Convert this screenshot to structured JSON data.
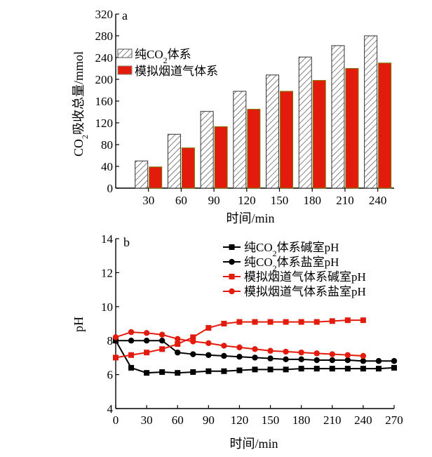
{
  "chart_data": [
    {
      "type": "bar",
      "panel_label": "a",
      "categories": [
        "30",
        "60",
        "90",
        "120",
        "150",
        "180",
        "210",
        "240"
      ],
      "xlabel": "时间/min",
      "ylabel_parts": [
        "CO",
        "2",
        "吸收总量/mmol"
      ],
      "ylim": [
        0,
        320
      ],
      "yticks": [
        "0",
        "40",
        "80",
        "120",
        "160",
        "200",
        "240",
        "280",
        "320"
      ],
      "legend_position": "top-left",
      "series": [
        {
          "name_parts": [
            "纯CO",
            "2",
            "体系"
          ],
          "values": [
            50,
            99,
            141,
            178,
            208,
            241,
            262,
            280
          ],
          "fill": "hatched",
          "color": "#ffffff"
        },
        {
          "name_parts": [
            "模拟烟道气体系",
            "",
            ""
          ],
          "values": [
            39,
            74,
            113,
            145,
            178,
            198,
            220,
            230
          ],
          "fill": "solid",
          "color": "#e31b0c"
        }
      ]
    },
    {
      "type": "line",
      "panel_label": "b",
      "xlabel": "时间/min",
      "ylabel": "pH",
      "xlim": [
        0,
        270
      ],
      "ylim": [
        4,
        14
      ],
      "xticks": [
        "0",
        "30",
        "60",
        "90",
        "120",
        "150",
        "180",
        "210",
        "240",
        "270"
      ],
      "yticks": [
        "4",
        "6",
        "8",
        "10",
        "12",
        "14"
      ],
      "legend_position": "top-right",
      "series": [
        {
          "name_parts": [
            "纯CO",
            "2",
            "体系碱室pH"
          ],
          "marker": "square",
          "color": "#000000",
          "x": [
            0,
            15,
            30,
            45,
            60,
            75,
            90,
            105,
            120,
            135,
            150,
            165,
            180,
            195,
            210,
            225,
            240,
            255,
            270
          ],
          "y": [
            8.0,
            6.4,
            6.1,
            6.15,
            6.1,
            6.15,
            6.2,
            6.2,
            6.25,
            6.3,
            6.3,
            6.3,
            6.35,
            6.35,
            6.35,
            6.35,
            6.35,
            6.35,
            6.4
          ]
        },
        {
          "name_parts": [
            "纯CO",
            "2",
            "体系盐室pH"
          ],
          "marker": "circle",
          "color": "#000000",
          "x": [
            0,
            15,
            30,
            45,
            60,
            75,
            90,
            105,
            120,
            135,
            150,
            165,
            180,
            195,
            210,
            225,
            240,
            255,
            270
          ],
          "y": [
            8.0,
            8.0,
            8.0,
            8.0,
            7.3,
            7.2,
            7.15,
            7.1,
            7.05,
            7.0,
            6.95,
            6.9,
            6.9,
            6.85,
            6.85,
            6.85,
            6.8,
            6.8,
            6.8
          ]
        },
        {
          "name_parts": [
            "模拟烟道气体系碱室pH",
            "",
            ""
          ],
          "marker": "square",
          "color": "#e31b0c",
          "x": [
            0,
            15,
            30,
            45,
            60,
            75,
            90,
            105,
            120,
            135,
            150,
            165,
            180,
            195,
            210,
            225,
            240
          ],
          "y": [
            7.0,
            7.15,
            7.3,
            7.5,
            7.8,
            8.2,
            8.75,
            9.0,
            9.1,
            9.1,
            9.1,
            9.1,
            9.1,
            9.1,
            9.15,
            9.2,
            9.2
          ]
        },
        {
          "name_parts": [
            "模拟烟道气体系盐室pH",
            "",
            ""
          ],
          "marker": "circle",
          "color": "#e31b0c",
          "x": [
            0,
            15,
            30,
            45,
            60,
            75,
            90,
            105,
            120,
            135,
            150,
            165,
            180,
            195,
            210,
            225,
            240
          ],
          "y": [
            8.2,
            8.5,
            8.45,
            8.35,
            8.1,
            7.95,
            7.85,
            7.7,
            7.6,
            7.5,
            7.4,
            7.35,
            7.3,
            7.25,
            7.2,
            7.15,
            7.1
          ]
        }
      ]
    }
  ]
}
